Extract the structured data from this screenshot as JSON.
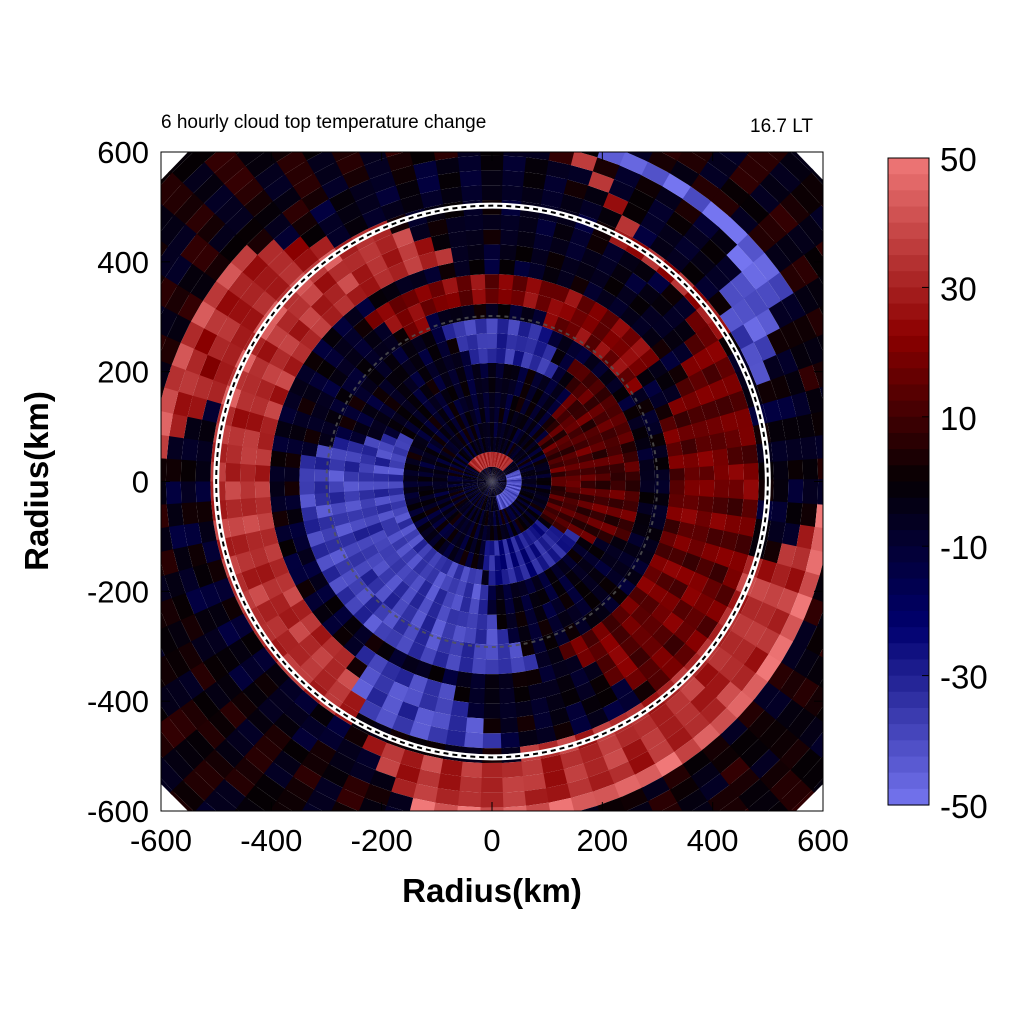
{
  "chart_data": {
    "type": "heatmap",
    "title": "6 hourly cloud top temperature change",
    "subtitle": "16.7 LT",
    "xlabel": "Radius(km)",
    "ylabel": "Radius(km)",
    "xlim": [
      -600,
      600
    ],
    "ylim": [
      -600,
      600
    ],
    "xticks": [
      -600,
      -400,
      -200,
      0,
      200,
      400,
      600
    ],
    "yticks": [
      -600,
      -400,
      -200,
      0,
      200,
      400,
      600
    ],
    "colorbar": {
      "min": -50,
      "max": 50,
      "ticks": [
        50,
        30,
        10,
        -10,
        -30,
        -50
      ],
      "colors": {
        "max": "#f07878",
        "mid_positive": "#8b0000",
        "zero": "#050003",
        "mid_negative": "#00006e",
        "min": "#7575f0"
      }
    },
    "reference_circles_radius_km": [
      500,
      300
    ],
    "spiral_bands": [
      {
        "sign": "positive",
        "r_inner": 400,
        "r_outer": 500,
        "theta_start_deg": 100,
        "theta_end_deg": 230,
        "value": 45
      },
      {
        "sign": "positive",
        "r_inner": 300,
        "r_outer": 380,
        "theta_start_deg": 30,
        "theta_end_deg": 120,
        "value": 30
      },
      {
        "sign": "positive",
        "r_inner": 320,
        "r_outer": 480,
        "theta_start_deg": -70,
        "theta_end_deg": 20,
        "value": 25
      },
      {
        "sign": "positive",
        "r_inner": 480,
        "r_outer": 620,
        "theta_start_deg": -120,
        "theta_end_deg": -20,
        "value": 45
      },
      {
        "sign": "positive",
        "r_inner": 480,
        "r_outer": 620,
        "theta_start_deg": 30,
        "theta_end_deg": 60,
        "value": 40
      },
      {
        "sign": "positive",
        "r_inner": 480,
        "r_outer": 620,
        "theta_start_deg": 120,
        "theta_end_deg": 160,
        "value": 40
      },
      {
        "sign": "positive",
        "r_inner": 120,
        "r_outer": 260,
        "theta_start_deg": -40,
        "theta_end_deg": 40,
        "value": 20
      },
      {
        "sign": "negative",
        "r_inner": 150,
        "r_outer": 340,
        "theta_start_deg": 150,
        "theta_end_deg": 260,
        "value": -40
      },
      {
        "sign": "negative",
        "r_inner": 380,
        "r_outer": 500,
        "theta_start_deg": 230,
        "theta_end_deg": 260,
        "value": -40
      },
      {
        "sign": "negative",
        "r_inner": 220,
        "r_outer": 330,
        "theta_start_deg": 60,
        "theta_end_deg": 100,
        "value": -35
      },
      {
        "sign": "negative",
        "r_inner": 520,
        "r_outer": 640,
        "theta_start_deg": 20,
        "theta_end_deg": 60,
        "value": -45
      },
      {
        "sign": "negative",
        "r_inner": 100,
        "r_outer": 200,
        "theta_start_deg": -100,
        "theta_end_deg": -40,
        "value": -30
      },
      {
        "sign": "negative",
        "r_inner": 0,
        "r_outer": 600,
        "theta_start_deg": 0,
        "theta_end_deg": 360,
        "value": -15
      },
      {
        "sign": "positive",
        "r_inner": 20,
        "r_outer": 60,
        "theta_start_deg": 40,
        "theta_end_deg": 140,
        "value": 45
      },
      {
        "sign": "negative",
        "r_inner": 20,
        "r_outer": 60,
        "theta_start_deg": -80,
        "theta_end_deg": 20,
        "value": -45
      }
    ]
  }
}
